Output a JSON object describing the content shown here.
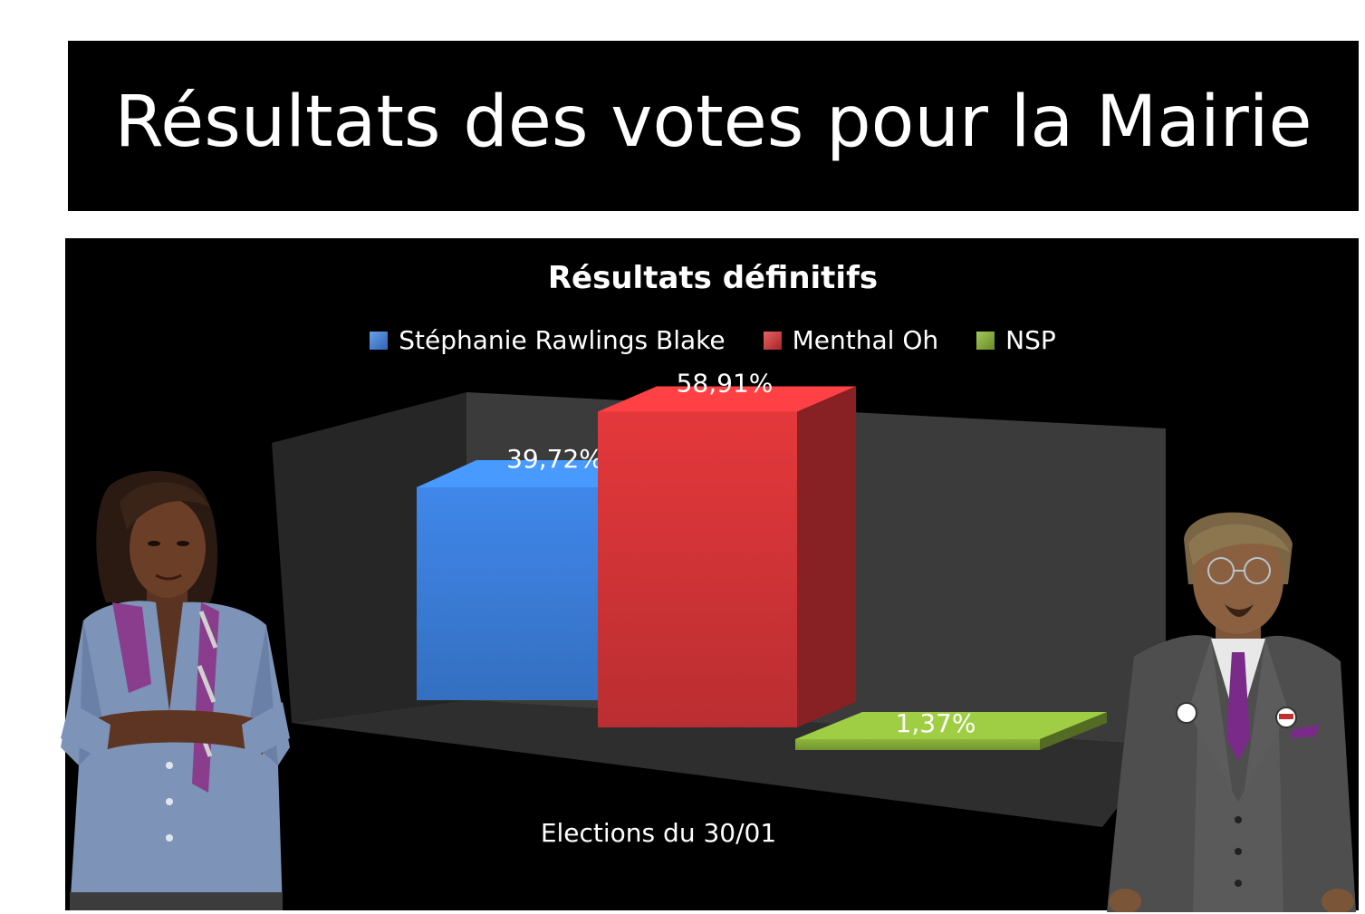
{
  "header": {
    "title": "Résultats des votes pour la Mairie"
  },
  "chart_data": {
    "type": "bar",
    "title": "Résultats définitifs",
    "xlabel": "Elections du 30/01",
    "ylabel": "",
    "categories": [
      "Elections du 30/01"
    ],
    "series": [
      {
        "name": "Stéphanie Rawlings Blake",
        "values": [
          39.72
        ],
        "label": "39,72%",
        "color": "#3a7bd5"
      },
      {
        "name": "Menthal Oh",
        "values": [
          58.91
        ],
        "label": "58,91%",
        "color": "#cf3336"
      },
      {
        "name": "NSP",
        "values": [
          1.37
        ],
        "label": "1,37%",
        "color": "#7fa536"
      }
    ],
    "unit": "%",
    "ylim": [
      0,
      60
    ],
    "style": "3d-bar",
    "legend_position": "top",
    "grid": false
  },
  "colors": {
    "banner_background": "#000000",
    "chart_background": "#000000",
    "text": "#ffffff"
  },
  "icons": {
    "left_avatar": "woman-avatar-figure",
    "right_avatar": "man-avatar-figure"
  }
}
